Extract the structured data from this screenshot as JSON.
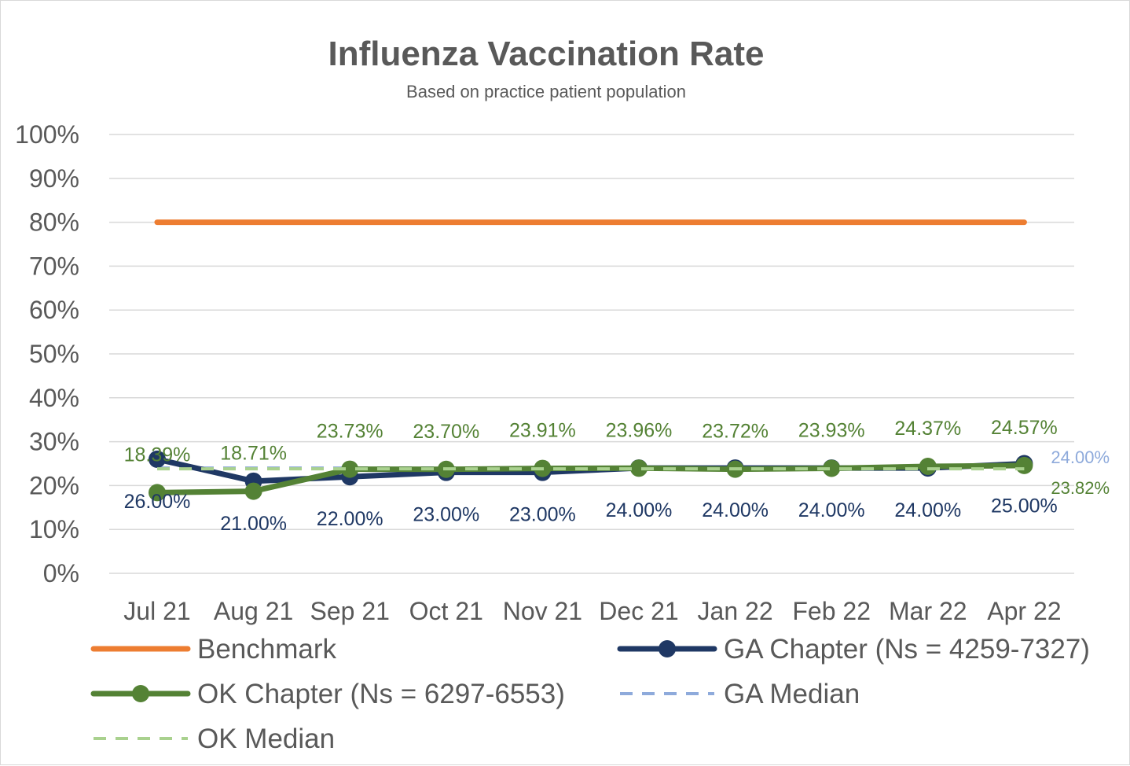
{
  "chart_data": {
    "type": "line",
    "title": "Influenza Vaccination Rate",
    "subtitle": "Based on practice patient population",
    "categories": [
      "Jul 21",
      "Aug 21",
      "Sep 21",
      "Oct 21",
      "Nov 21",
      "Dec 21",
      "Jan 22",
      "Feb 22",
      "Mar 22",
      "Apr 22"
    ],
    "ylim": [
      0,
      100
    ],
    "yticks": [
      "0%",
      "10%",
      "20%",
      "30%",
      "40%",
      "50%",
      "60%",
      "70%",
      "80%",
      "90%",
      "100%"
    ],
    "grid": true,
    "legend_position": "bottom",
    "series": [
      {
        "name": "Benchmark",
        "values": [
          80,
          80,
          80,
          80,
          80,
          80,
          80,
          80,
          80,
          80
        ],
        "color": "#ed7d31",
        "style": "solid",
        "markers": false
      },
      {
        "name": "GA Chapter (Ns = 4259-7327)",
        "values": [
          26.0,
          21.0,
          22.0,
          23.0,
          23.0,
          24.0,
          24.0,
          24.0,
          24.0,
          25.0
        ],
        "color": "#1f3864",
        "style": "solid",
        "markers": true,
        "labels": [
          "26.00%",
          "21.00%",
          "22.00%",
          "23.00%",
          "23.00%",
          "24.00%",
          "24.00%",
          "24.00%",
          "24.00%",
          "25.00%"
        ]
      },
      {
        "name": "OK Chapter (Ns = 6297-6553)",
        "values": [
          18.39,
          18.71,
          23.73,
          23.7,
          23.91,
          23.96,
          23.72,
          23.93,
          24.37,
          24.57
        ],
        "color": "#548235",
        "style": "solid",
        "markers": true,
        "labels": [
          "18.39%",
          "18.71%",
          "23.73%",
          "23.70%",
          "23.91%",
          "23.96%",
          "23.72%",
          "23.93%",
          "24.37%",
          "24.57%"
        ]
      },
      {
        "name": "GA Median",
        "values": [
          24.0,
          24.0,
          24.0,
          24.0,
          24.0,
          24.0,
          24.0,
          24.0,
          24.0,
          24.0
        ],
        "color": "#8eaadb",
        "style": "dashed",
        "markers": false,
        "end_label": "24.00%"
      },
      {
        "name": "OK Median",
        "values": [
          23.82,
          23.82,
          23.82,
          23.82,
          23.82,
          23.82,
          23.82,
          23.82,
          23.82,
          23.82
        ],
        "color": "#a9d18e",
        "style": "dashed",
        "markers": false,
        "end_label": "23.82%"
      }
    ]
  }
}
